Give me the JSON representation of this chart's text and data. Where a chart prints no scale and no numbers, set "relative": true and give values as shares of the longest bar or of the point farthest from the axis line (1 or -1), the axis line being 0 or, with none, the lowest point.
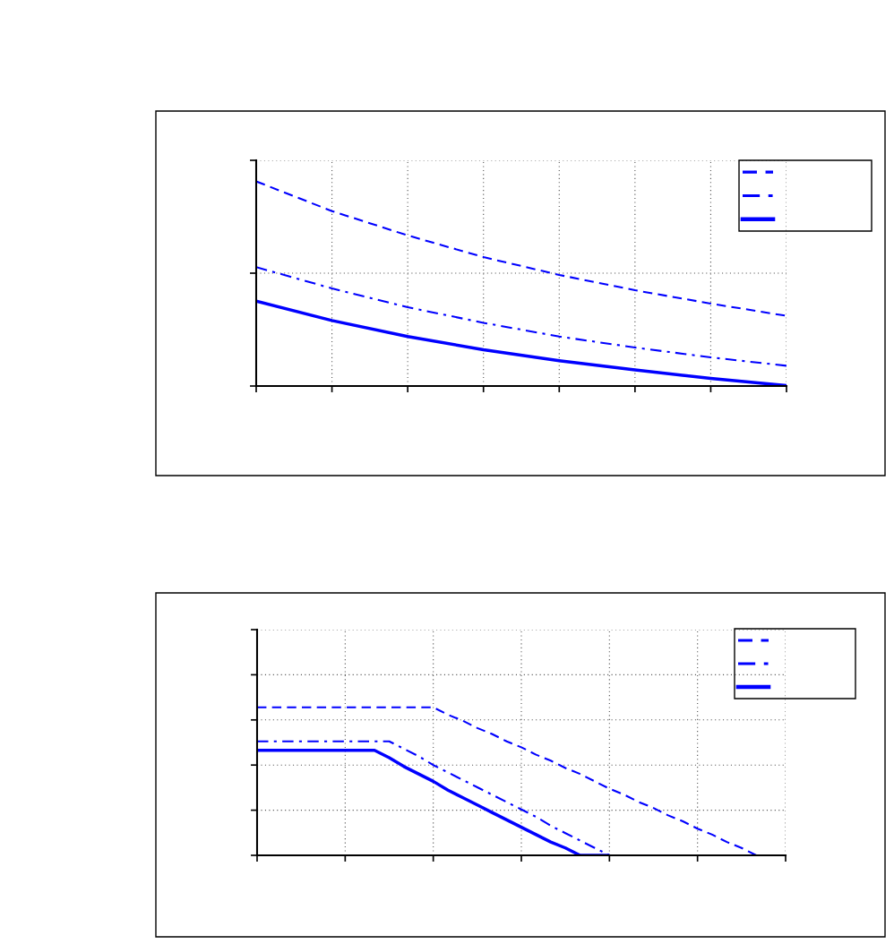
{
  "chart_data": [
    {
      "type": "line",
      "relative": true,
      "grid": true,
      "tick_labels": false,
      "categories": [
        null,
        null,
        null,
        null,
        null,
        null,
        null,
        null
      ],
      "series": [
        {
          "color": "#0000ff",
          "line_style": "dashed",
          "values": [
            1,
            0.855,
            0.736,
            0.63,
            0.543,
            0.468,
            0.403,
            0.343
          ]
        },
        {
          "color": "#0000ff",
          "line_style": "dashdot",
          "values": [
            0.581,
            0.477,
            0.385,
            0.309,
            0.242,
            0.188,
            0.14,
            0.099
          ]
        },
        {
          "color": "#0000ff",
          "line_style": "solid",
          "values": [
            0.415,
            0.32,
            0.242,
            0.177,
            0.124,
            0.079,
            0.037,
            0.002
          ]
        }
      ]
    },
    {
      "type": "line",
      "relative": true,
      "grid": true,
      "tick_labels": false,
      "categories": [
        null,
        null,
        null,
        null,
        null,
        null,
        null,
        null,
        null,
        null,
        null,
        null,
        null,
        null,
        null,
        null,
        null,
        null,
        null,
        null,
        null,
        null,
        null,
        null,
        null,
        null,
        null,
        null,
        null,
        null,
        null,
        null,
        null,
        null,
        null,
        null,
        null
      ],
      "series": [
        {
          "color": "#0000ff",
          "line_style": "dashed",
          "values": [
            1,
            1,
            1,
            1,
            1,
            1,
            1,
            1,
            1,
            1,
            1,
            1,
            1,
            0.95,
            0.91,
            0.86,
            0.82,
            0.77,
            0.73,
            0.68,
            0.64,
            0.59,
            0.55,
            0.5,
            0.45,
            0.41,
            0.36,
            0.32,
            0.27,
            0.23,
            0.18,
            0.14,
            0.09,
            0.05,
            0,
            0,
            0
          ]
        },
        {
          "color": "#0000ff",
          "line_style": "dashdot",
          "values": [
            0.77,
            0.77,
            0.77,
            0.77,
            0.77,
            0.77,
            0.77,
            0.77,
            0.77,
            0.77,
            0.72,
            0.67,
            0.61,
            0.56,
            0.51,
            0.46,
            0.41,
            0.36,
            0.31,
            0.26,
            0.2,
            0.15,
            0.1,
            0.05,
            0,
            null,
            null,
            null,
            null,
            null,
            null,
            null,
            null,
            null,
            null,
            null,
            null
          ]
        },
        {
          "color": "#0000ff",
          "line_style": "solid",
          "values": [
            0.71,
            0.71,
            0.71,
            0.71,
            0.71,
            0.71,
            0.71,
            0.71,
            0.71,
            0.66,
            0.6,
            0.55,
            0.5,
            0.44,
            0.39,
            0.34,
            0.29,
            0.24,
            0.19,
            0.14,
            0.09,
            0.05,
            0,
            0,
            0,
            null,
            null,
            null,
            null,
            null,
            null,
            null,
            null,
            null,
            null,
            null,
            null
          ]
        }
      ]
    }
  ]
}
